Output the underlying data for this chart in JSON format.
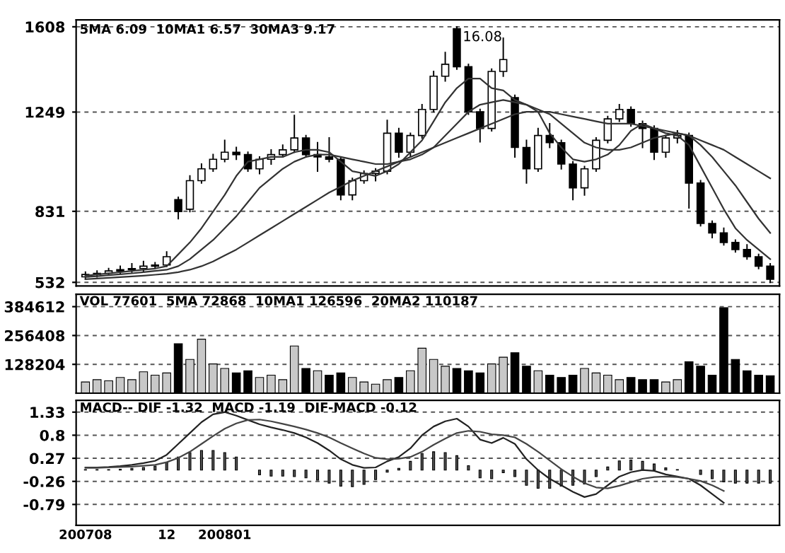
{
  "chart_data": [
    {
      "type": "candlestick",
      "title": "5MA 6.09  10MA1 6.57  30MA3 9.17",
      "categories": [
        "200708",
        null,
        null,
        null,
        null,
        null,
        null,
        "12",
        null,
        null,
        null,
        null,
        "200801",
        null,
        null,
        null,
        null,
        null,
        null,
        null,
        null,
        null,
        null,
        null,
        null,
        null,
        null,
        null,
        null,
        null,
        null,
        null,
        null,
        null,
        null,
        null,
        null,
        null,
        null,
        null,
        null,
        null,
        null,
        null,
        null,
        null,
        null,
        null,
        null,
        null,
        null,
        null,
        null,
        null,
        null,
        null,
        null,
        null,
        null,
        null
      ],
      "ohlc": [
        [
          555,
          575,
          545,
          565
        ],
        [
          565,
          580,
          555,
          570
        ],
        [
          570,
          590,
          565,
          580
        ],
        [
          580,
          600,
          570,
          585
        ],
        [
          585,
          610,
          575,
          590
        ],
        [
          590,
          620,
          580,
          600
        ],
        [
          600,
          615,
          590,
          605
        ],
        [
          605,
          660,
          600,
          640
        ],
        [
          880,
          890,
          800,
          830
        ],
        [
          840,
          980,
          830,
          960
        ],
        [
          960,
          1030,
          950,
          1010
        ],
        [
          1010,
          1070,
          1000,
          1050
        ],
        [
          1050,
          1130,
          1040,
          1080
        ],
        [
          1080,
          1100,
          1050,
          1070
        ],
        [
          1070,
          1080,
          1000,
          1010
        ],
        [
          1010,
          1060,
          990,
          1050
        ],
        [
          1050,
          1090,
          1030,
          1070
        ],
        [
          1070,
          1110,
          1060,
          1090
        ],
        [
          1090,
          1235,
          1080,
          1140
        ],
        [
          1140,
          1150,
          1060,
          1070
        ],
        [
          1070,
          1120,
          1000,
          1060
        ],
        [
          1060,
          1140,
          1040,
          1050
        ],
        [
          1050,
          1060,
          880,
          900
        ],
        [
          900,
          970,
          880,
          960
        ],
        [
          960,
          1000,
          950,
          990
        ],
        [
          990,
          1010,
          960,
          1000
        ],
        [
          1000,
          1214,
          990,
          1160
        ],
        [
          1160,
          1180,
          1060,
          1080
        ],
        [
          1080,
          1160,
          1060,
          1150
        ],
        [
          1150,
          1280,
          1140,
          1260
        ],
        [
          1260,
          1420,
          1250,
          1400
        ],
        [
          1400,
          1500,
          1380,
          1450
        ],
        [
          1600,
          1608,
          1430,
          1440
        ],
        [
          1440,
          1450,
          1240,
          1250
        ],
        [
          1250,
          1260,
          1124,
          1180
        ],
        [
          1180,
          1430,
          1170,
          1420
        ],
        [
          1420,
          1560,
          1400,
          1470
        ],
        [
          1310,
          1320,
          1060,
          1100
        ],
        [
          1100,
          1130,
          950,
          1010
        ],
        [
          1010,
          1180,
          1000,
          1150
        ],
        [
          1150,
          1200,
          1100,
          1120
        ],
        [
          1120,
          1130,
          1010,
          1030
        ],
        [
          1030,
          1040,
          880,
          930
        ],
        [
          930,
          1020,
          900,
          1010
        ],
        [
          1010,
          1140,
          1000,
          1130
        ],
        [
          1130,
          1230,
          1120,
          1220
        ],
        [
          1220,
          1280,
          1210,
          1260
        ],
        [
          1260,
          1270,
          1190,
          1200
        ],
        [
          1200,
          1210,
          1100,
          1180
        ],
        [
          1180,
          1190,
          1050,
          1080
        ],
        [
          1080,
          1150,
          1060,
          1140
        ],
        [
          1140,
          1170,
          1120,
          1150
        ],
        [
          1150,
          1160,
          845,
          950
        ],
        [
          950,
          960,
          770,
          780
        ],
        [
          780,
          790,
          720,
          740
        ],
        [
          740,
          760,
          690,
          700
        ],
        [
          700,
          710,
          660,
          670
        ],
        [
          670,
          690,
          630,
          640
        ],
        [
          640,
          650,
          590,
          600
        ],
        [
          600,
          610,
          532,
          545
        ]
      ],
      "colors": [
        "#ffffff",
        "#ffffff",
        "#ffffff",
        "#ffffff",
        "#ffffff",
        "#ffffff",
        "#ffffff",
        "#ffffff",
        "#000000",
        "#ffffff",
        "#ffffff",
        "#ffffff",
        "#ffffff",
        "#000000",
        "#000000",
        "#ffffff",
        "#ffffff",
        "#ffffff",
        "#ffffff",
        "#000000",
        "#000000",
        "#000000",
        "#000000",
        "#ffffff",
        "#ffffff",
        "#ffffff",
        "#ffffff",
        "#000000",
        "#ffffff",
        "#ffffff",
        "#ffffff",
        "#ffffff",
        "#000000",
        "#000000",
        "#000000",
        "#ffffff",
        "#ffffff",
        "#000000",
        "#000000",
        "#ffffff",
        "#000000",
        "#000000",
        "#000000",
        "#ffffff",
        "#ffffff",
        "#ffffff",
        "#ffffff",
        "#000000",
        "#000000",
        "#000000",
        "#ffffff",
        "#ffffff",
        "#000000",
        "#000000",
        "#000000",
        "#000000",
        "#000000",
        "#000000",
        "#000000",
        "#000000"
      ],
      "series": [
        {
          "type": "line",
          "color": "#333333",
          "values": [
            560,
            565,
            570,
            575,
            580,
            585,
            590,
            600,
            650,
            700,
            760,
            830,
            900,
            980,
            1040,
            1050,
            1060,
            1060,
            1080,
            1090,
            1090,
            1080,
            1040,
            1000,
            990,
            980,
            1000,
            1030,
            1080,
            1130,
            1210,
            1290,
            1350,
            1390,
            1390,
            1350,
            1340,
            1300,
            1280,
            1250,
            1160,
            1100,
            1050,
            1040,
            1050,
            1070,
            1110,
            1170,
            1200,
            1180,
            1160,
            1150,
            1110,
            1020,
            930,
            840,
            760,
            710,
            670,
            630
          ]
        },
        {
          "type": "line",
          "color": "#333333",
          "values": [
            555,
            558,
            562,
            566,
            570,
            575,
            580,
            585,
            600,
            630,
            670,
            710,
            760,
            810,
            870,
            930,
            970,
            1010,
            1040,
            1060,
            1070,
            1070,
            1060,
            1050,
            1040,
            1030,
            1030,
            1040,
            1050,
            1070,
            1100,
            1150,
            1200,
            1250,
            1280,
            1290,
            1300,
            1290,
            1280,
            1260,
            1240,
            1200,
            1160,
            1120,
            1100,
            1090,
            1090,
            1100,
            1120,
            1140,
            1150,
            1160,
            1150,
            1110,
            1060,
            1000,
            940,
            870,
            800,
            740
          ]
        },
        {
          "type": "line",
          "color": "#333333",
          "values": [
            545,
            548,
            551,
            554,
            557,
            560,
            564,
            568,
            575,
            585,
            600,
            620,
            645,
            670,
            700,
            730,
            760,
            790,
            820,
            850,
            880,
            910,
            935,
            960,
            980,
            1000,
            1020,
            1040,
            1060,
            1080,
            1100,
            1120,
            1140,
            1160,
            1180,
            1200,
            1220,
            1240,
            1250,
            1250,
            1250,
            1240,
            1230,
            1220,
            1210,
            1200,
            1200,
            1200,
            1190,
            1180,
            1170,
            1160,
            1150,
            1130,
            1110,
            1090,
            1060,
            1030,
            1000,
            970
          ]
        }
      ],
      "annotations": [
        "16.08"
      ],
      "ylim": [
        517,
        1637
      ],
      "yticks": [
        532,
        831,
        1249,
        1608
      ],
      "grid": "y",
      "tick_labels": "y"
    },
    {
      "type": "bar",
      "title": "VOL 77601  5MA 72868  10MA1 126596  20MA2 110187",
      "categories": [
        "200708",
        null,
        null,
        null,
        null,
        null,
        null,
        "12",
        null,
        null,
        null,
        null,
        "200801",
        null,
        null,
        null,
        null,
        null,
        null,
        null,
        null,
        null,
        null,
        null,
        null,
        null,
        null,
        null,
        null,
        null,
        null,
        null,
        null,
        null,
        null,
        null,
        null,
        null,
        null,
        null,
        null,
        null,
        null,
        null,
        null,
        null,
        null,
        null,
        null,
        null,
        null,
        null,
        null,
        null,
        null,
        null,
        null,
        null,
        null,
        null
      ],
      "values": [
        50000,
        60000,
        55000,
        70000,
        60000,
        95000,
        80000,
        90000,
        220000,
        150000,
        240000,
        130000,
        110000,
        90000,
        100000,
        70000,
        80000,
        60000,
        210000,
        110000,
        100000,
        80000,
        90000,
        70000,
        50000,
        40000,
        60000,
        70000,
        100000,
        200000,
        150000,
        120000,
        110000,
        100000,
        90000,
        130000,
        160000,
        180000,
        120000,
        100000,
        80000,
        70000,
        80000,
        110000,
        90000,
        80000,
        60000,
        70000,
        60000,
        60000,
        50000,
        60000,
        140000,
        120000,
        80000,
        380000,
        150000,
        100000,
        80000,
        78000
      ],
      "colors": [
        "#c8c8c8",
        "#c8c8c8",
        "#c8c8c8",
        "#c8c8c8",
        "#c8c8c8",
        "#c8c8c8",
        "#c8c8c8",
        "#c8c8c8",
        "#000000",
        "#c8c8c8",
        "#c8c8c8",
        "#c8c8c8",
        "#c8c8c8",
        "#000000",
        "#000000",
        "#c8c8c8",
        "#c8c8c8",
        "#c8c8c8",
        "#c8c8c8",
        "#000000",
        "#c8c8c8",
        "#000000",
        "#000000",
        "#c8c8c8",
        "#c8c8c8",
        "#c8c8c8",
        "#c8c8c8",
        "#000000",
        "#c8c8c8",
        "#c8c8c8",
        "#c8c8c8",
        "#c8c8c8",
        "#000000",
        "#000000",
        "#000000",
        "#c8c8c8",
        "#c8c8c8",
        "#000000",
        "#000000",
        "#c8c8c8",
        "#000000",
        "#000000",
        "#000000",
        "#c8c8c8",
        "#c8c8c8",
        "#c8c8c8",
        "#c8c8c8",
        "#000000",
        "#000000",
        "#000000",
        "#c8c8c8",
        "#c8c8c8",
        "#000000",
        "#000000",
        "#000000",
        "#000000",
        "#000000",
        "#000000",
        "#000000",
        "#000000"
      ],
      "ylim": [
        0,
        440000
      ],
      "yticks": [
        128204,
        256408,
        384612
      ],
      "grid": "y",
      "tick_labels": "y"
    },
    {
      "type": "line",
      "title": "MACD-- DIF -1.32  MACD -1.19  DIF-MACD -0.12",
      "categories": [
        "200708",
        null,
        null,
        null,
        null,
        null,
        null,
        "12",
        null,
        null,
        null,
        null,
        "200801",
        null,
        null,
        null,
        null,
        null,
        null,
        null,
        null,
        null,
        null,
        null,
        null,
        null,
        null,
        null,
        null,
        null,
        null,
        null,
        null,
        null,
        null,
        null,
        null,
        null,
        null,
        null,
        null,
        null,
        null,
        null,
        null,
        null,
        null,
        null,
        null,
        null,
        null,
        null,
        null,
        null,
        null,
        null,
        null,
        null,
        null,
        null
      ],
      "series": [
        {
          "type": "bar",
          "color": "#555555",
          "values": [
            0.01,
            0.01,
            0.01,
            0.02,
            0.04,
            0.06,
            0.09,
            0.17,
            0.3,
            0.4,
            0.45,
            0.45,
            0.4,
            0.3,
            null,
            -0.11,
            -0.14,
            -0.14,
            -0.15,
            -0.18,
            -0.23,
            -0.3,
            -0.37,
            -0.38,
            -0.33,
            -0.22,
            -0.05,
            0.04,
            0.2,
            0.38,
            0.42,
            0.4,
            0.33,
            0.1,
            -0.18,
            -0.2,
            -0.06,
            -0.15,
            -0.35,
            -0.42,
            -0.42,
            -0.37,
            -0.35,
            -0.32,
            -0.15,
            0.07,
            0.21,
            0.23,
            0.2,
            0.14,
            0.05,
            0.01,
            null,
            -0.1,
            -0.2,
            -0.27,
            -0.3,
            -0.3,
            -0.3,
            -0.3
          ]
        },
        {
          "type": "line",
          "color": "#222222",
          "values": [
            0.06,
            0.06,
            0.07,
            0.09,
            0.12,
            0.16,
            0.21,
            0.35,
            0.6,
            0.85,
            1.1,
            1.28,
            1.33,
            1.25,
            1.15,
            1.05,
            0.98,
            0.92,
            0.85,
            0.75,
            0.62,
            0.45,
            0.25,
            0.12,
            0.05,
            0.06,
            0.2,
            0.3,
            0.5,
            0.8,
            1.0,
            1.12,
            1.18,
            1.0,
            0.7,
            0.62,
            0.74,
            0.6,
            0.25,
            0.0,
            -0.2,
            -0.35,
            -0.5,
            -0.62,
            -0.55,
            -0.35,
            -0.15,
            -0.05,
            0.0,
            -0.02,
            -0.1,
            -0.15,
            -0.2,
            -0.35,
            -0.55,
            -0.75,
            null,
            null,
            null,
            null
          ]
        },
        {
          "type": "line",
          "color": "#444444",
          "values": [
            0.05,
            0.05,
            0.06,
            0.07,
            0.08,
            0.1,
            0.12,
            0.18,
            0.28,
            0.42,
            0.6,
            0.78,
            0.95,
            1.07,
            1.15,
            1.16,
            1.12,
            1.06,
            1.0,
            0.93,
            0.85,
            0.75,
            0.62,
            0.5,
            0.38,
            0.28,
            0.25,
            0.26,
            0.3,
            0.42,
            0.58,
            0.72,
            0.85,
            0.9,
            0.88,
            0.82,
            0.8,
            0.75,
            0.6,
            0.42,
            0.22,
            0.02,
            -0.15,
            -0.3,
            -0.4,
            -0.42,
            -0.36,
            -0.28,
            -0.2,
            -0.16,
            -0.15,
            -0.16,
            -0.2,
            -0.25,
            -0.35,
            -0.48,
            null,
            null,
            null,
            null
          ]
        }
      ],
      "ylim": [
        -1.27,
        1.6
      ],
      "yticks": [
        1.33,
        0.8,
        0.27,
        -0.26,
        -0.79
      ],
      "grid": "y"
    }
  ]
}
